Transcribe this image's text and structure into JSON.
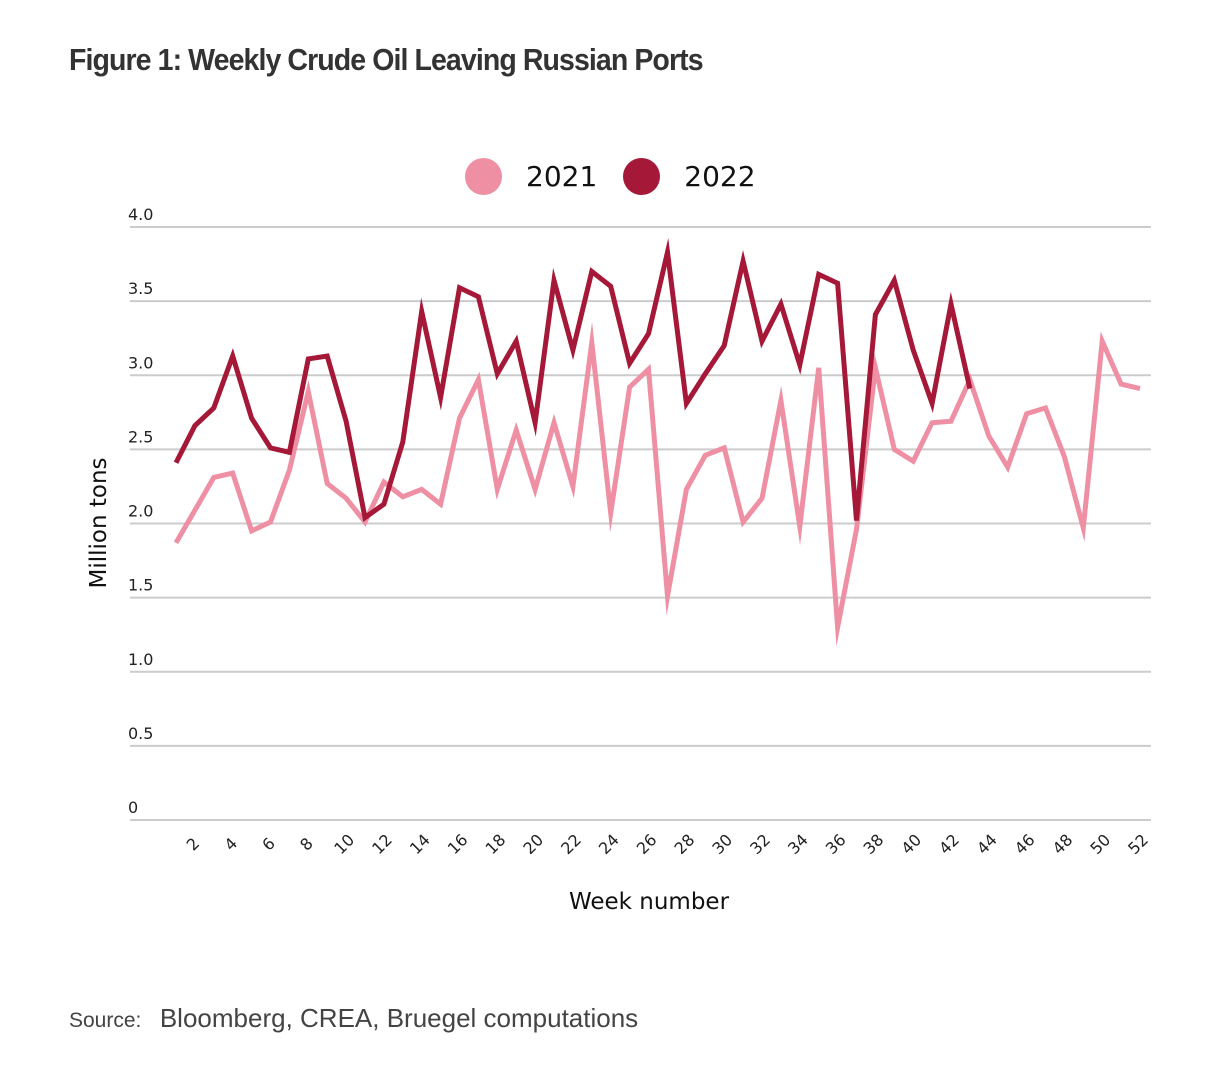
{
  "title": "Figure 1: Weekly Crude Oil Leaving Russian Ports",
  "source": {
    "label": "Source:",
    "text": "Bloomberg, CREA, Bruegel computations"
  },
  "colors": {
    "series_2021": "#EE8FA4",
    "series_2022": "#A51838",
    "gridline": "#CCCCCC"
  },
  "chart_data": {
    "type": "line",
    "title": "Figure 1: Weekly Crude Oil Leaving Russian Ports",
    "xlabel": "Week number",
    "ylabel": "Million tons",
    "ylim": [
      0,
      4.0
    ],
    "xlim": [
      1,
      52
    ],
    "grid": true,
    "legend_position": "top-center",
    "y_ticks": [
      "0",
      "0.5",
      "1.0",
      "1.5",
      "2.0",
      "2.5",
      "3.0",
      "3.5",
      "4.0"
    ],
    "y_tick_values": [
      0,
      0.5,
      1.0,
      1.5,
      2.0,
      2.5,
      3.0,
      3.5,
      4.0
    ],
    "x_ticks": [
      "2",
      "4",
      "6",
      "8",
      "10",
      "12",
      "14",
      "16",
      "18",
      "20",
      "22",
      "24",
      "26",
      "28",
      "30",
      "32",
      "34",
      "36",
      "38",
      "40",
      "42",
      "44",
      "46",
      "48",
      "50",
      "52"
    ],
    "x_tick_values": [
      2,
      4,
      6,
      8,
      10,
      12,
      14,
      16,
      18,
      20,
      22,
      24,
      26,
      28,
      30,
      32,
      34,
      36,
      38,
      40,
      42,
      44,
      46,
      48,
      50,
      52
    ],
    "series": [
      {
        "name": "2021",
        "x": [
          1,
          2,
          3,
          4,
          5,
          6,
          7,
          8,
          9,
          10,
          11,
          12,
          13,
          14,
          15,
          16,
          17,
          18,
          19,
          20,
          21,
          22,
          23,
          24,
          25,
          26,
          27,
          28,
          29,
          30,
          31,
          32,
          33,
          34,
          35,
          36,
          37,
          38,
          39,
          40,
          41,
          42,
          43,
          44,
          45,
          46,
          47,
          48,
          49,
          50,
          51,
          52
        ],
        "values": [
          1.87,
          2.09,
          2.31,
          2.34,
          1.95,
          2.01,
          2.36,
          2.89,
          2.27,
          2.17,
          2.01,
          2.28,
          2.18,
          2.23,
          2.13,
          2.71,
          2.97,
          2.23,
          2.63,
          2.23,
          2.68,
          2.25,
          3.22,
          2.07,
          2.92,
          3.04,
          1.51,
          2.23,
          2.46,
          2.51,
          2.01,
          2.17,
          2.83,
          1.98,
          3.05,
          1.3,
          1.96,
          3.05,
          2.5,
          2.42,
          2.68,
          2.69,
          2.97,
          2.59,
          2.38,
          2.74,
          2.78,
          2.45,
          1.97,
          3.23,
          2.94,
          2.91
        ]
      },
      {
        "name": "2022",
        "x": [
          1,
          2,
          3,
          4,
          5,
          6,
          7,
          8,
          9,
          10,
          11,
          12,
          13,
          14,
          15,
          16,
          17,
          18,
          19,
          20,
          21,
          22,
          23,
          24,
          25,
          26,
          27,
          28,
          29,
          30,
          31,
          32,
          33,
          34,
          35,
          36,
          37,
          38,
          39,
          40,
          41,
          42,
          43
        ],
        "values": [
          2.41,
          2.66,
          2.78,
          3.13,
          2.71,
          2.51,
          2.48,
          3.11,
          3.13,
          2.69,
          2.04,
          2.13,
          2.55,
          3.43,
          2.85,
          3.59,
          3.53,
          3.01,
          3.23,
          2.68,
          3.64,
          3.17,
          3.7,
          3.6,
          3.08,
          3.28,
          3.83,
          2.81,
          3.01,
          3.2,
          3.77,
          3.23,
          3.48,
          3.07,
          3.68,
          3.62,
          2.02,
          3.41,
          3.64,
          3.17,
          2.81,
          3.48,
          2.91
        ]
      }
    ]
  }
}
